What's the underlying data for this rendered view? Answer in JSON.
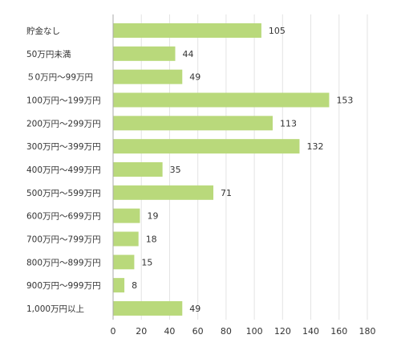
{
  "chart_data": {
    "type": "bar",
    "orientation": "horizontal",
    "categories": [
      "貯金なし",
      "50万円未満",
      "５0万円～99万円",
      "100万円～199万円",
      "200万円～299万円",
      "300万円～399万円",
      "400万円～499万円",
      "500万円～599万円",
      "600万円～699万円",
      "700万円～799万円",
      "800万円～899万円",
      "900万円～999万円",
      "1,000万円以上"
    ],
    "values": [
      105,
      44,
      49,
      153,
      113,
      132,
      35,
      71,
      19,
      18,
      15,
      8,
      49
    ],
    "data_labels": [
      "105",
      "44",
      "49",
      "153",
      "113",
      "132",
      "35",
      "71",
      "19",
      "18",
      "15",
      "8",
      "49"
    ],
    "xlim": [
      0,
      180
    ],
    "xticks": [
      "0",
      "20",
      "40",
      "60",
      "80",
      "100",
      "120",
      "140",
      "160",
      "180"
    ],
    "grid": "vertical",
    "bar_color": "#b9d97b",
    "grid_color": "#e3e3e3",
    "axis_color": "#aaaaaa"
  }
}
